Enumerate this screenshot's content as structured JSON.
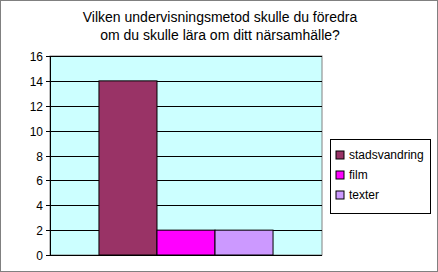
{
  "chart_data": {
    "type": "bar",
    "title": "Vilken undervisningsmetod skulle du föredra\nom du skulle lära om ditt närsamhälle?",
    "categories": [
      null
    ],
    "series": [
      {
        "name": "stadsvandring",
        "color": "#993366",
        "values": [
          14
        ]
      },
      {
        "name": "film",
        "color": "#ff00ff",
        "values": [
          2
        ]
      },
      {
        "name": "texter",
        "color": "#cc99ff",
        "values": [
          2
        ]
      }
    ],
    "ylim": [
      0,
      16
    ],
    "yticks": [
      0,
      2,
      4,
      6,
      8,
      10,
      12,
      14,
      16
    ],
    "grid": true,
    "legend": "right"
  }
}
